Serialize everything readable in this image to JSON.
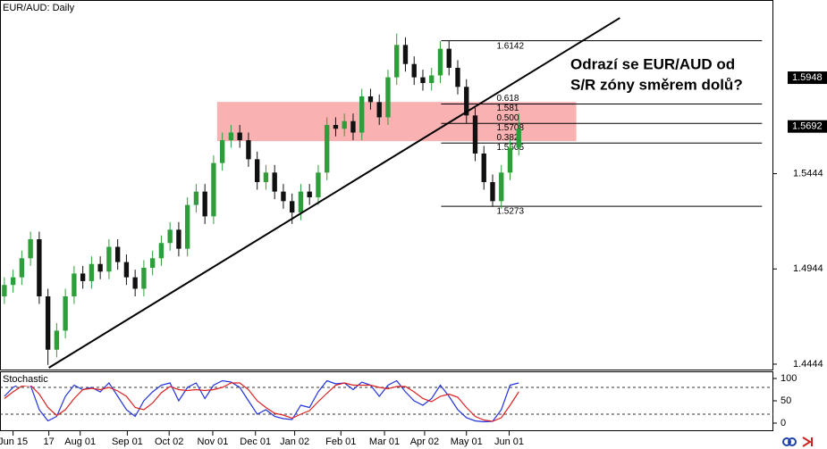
{
  "chart_data": {
    "type": "candlestick",
    "title": "EUR/AUD: Daily",
    "annotation": [
      "Odrazí se EUR/AUD od",
      "S/R zóny směrem dolů?"
    ],
    "up_color": "#2e9e3a",
    "down_color": "#111111",
    "open": [
      1.48,
      1.486,
      1.49,
      1.5,
      1.51,
      1.48,
      1.452,
      1.462,
      1.48,
      1.492,
      1.488,
      1.497,
      1.493,
      1.506,
      1.498,
      1.49,
      1.484,
      1.495,
      1.5,
      1.508,
      1.515,
      1.505,
      1.528,
      1.535,
      1.522,
      1.55,
      1.562,
      1.566,
      1.562,
      1.552,
      1.54,
      1.545,
      1.535,
      1.53,
      1.524,
      1.535,
      1.532,
      1.545,
      1.57,
      1.568,
      1.572,
      1.566,
      1.585,
      1.582,
      1.574,
      1.595,
      1.612,
      1.602,
      1.595,
      1.592,
      1.596,
      1.61,
      1.6,
      1.59,
      1.575,
      1.555,
      1.54,
      1.53,
      1.545,
      1.558
    ],
    "high": [
      1.49,
      1.494,
      1.504,
      1.514,
      1.514,
      1.484,
      1.466,
      1.484,
      1.496,
      1.496,
      1.501,
      1.501,
      1.51,
      1.51,
      1.502,
      1.494,
      1.499,
      1.504,
      1.512,
      1.519,
      1.519,
      1.532,
      1.539,
      1.539,
      1.554,
      1.566,
      1.57,
      1.57,
      1.566,
      1.556,
      1.549,
      1.549,
      1.539,
      1.534,
      1.539,
      1.539,
      1.549,
      1.574,
      1.574,
      1.576,
      1.576,
      1.589,
      1.589,
      1.586,
      1.599,
      1.618,
      1.616,
      1.606,
      1.599,
      1.6,
      1.614,
      1.614,
      1.604,
      1.594,
      1.579,
      1.559,
      1.544,
      1.549,
      1.562,
      1.576
    ],
    "low": [
      1.476,
      1.482,
      1.486,
      1.496,
      1.476,
      1.444,
      1.448,
      1.458,
      1.476,
      1.484,
      1.484,
      1.489,
      1.489,
      1.494,
      1.486,
      1.48,
      1.48,
      1.491,
      1.496,
      1.504,
      1.501,
      1.501,
      1.524,
      1.518,
      1.518,
      1.546,
      1.558,
      1.558,
      1.548,
      1.536,
      1.536,
      1.531,
      1.526,
      1.518,
      1.52,
      1.528,
      1.528,
      1.541,
      1.564,
      1.564,
      1.562,
      1.562,
      1.578,
      1.57,
      1.57,
      1.591,
      1.598,
      1.591,
      1.588,
      1.588,
      1.592,
      1.596,
      1.586,
      1.571,
      1.551,
      1.536,
      1.527,
      1.526,
      1.541,
      1.554
    ],
    "close": [
      1.486,
      1.49,
      1.5,
      1.51,
      1.48,
      1.452,
      1.462,
      1.48,
      1.492,
      1.488,
      1.497,
      1.493,
      1.506,
      1.498,
      1.49,
      1.484,
      1.495,
      1.5,
      1.508,
      1.515,
      1.505,
      1.528,
      1.535,
      1.522,
      1.55,
      1.562,
      1.566,
      1.562,
      1.552,
      1.54,
      1.545,
      1.535,
      1.53,
      1.524,
      1.535,
      1.532,
      1.545,
      1.57,
      1.568,
      1.572,
      1.566,
      1.585,
      1.582,
      1.574,
      1.595,
      1.612,
      1.602,
      1.595,
      1.592,
      1.596,
      1.61,
      1.6,
      1.59,
      1.575,
      1.555,
      1.54,
      1.53,
      1.545,
      1.558,
      1.568
    ],
    "xlim": [
      -0.5,
      88.2
    ],
    "ylim": [
      1.4411,
      1.6356
    ],
    "yticks": [
      1.4444,
      1.4944,
      1.5444
    ],
    "price_markers": [
      1.5948,
      1.5692
    ],
    "xticks": [
      {
        "value": 1.0,
        "label": "Jun 15"
      },
      {
        "value": 5.1,
        "label": "17"
      },
      {
        "value": 8.7,
        "label": "Aug 01"
      },
      {
        "value": 14.1,
        "label": "Sep 01"
      },
      {
        "value": 18.9,
        "label": "Oct 02"
      },
      {
        "value": 23.9,
        "label": "Nov 01"
      },
      {
        "value": 28.8,
        "label": "Dec 01"
      },
      {
        "value": 33.3,
        "label": "Jan 02"
      },
      {
        "value": 38.6,
        "label": "Feb 01"
      },
      {
        "value": 43.6,
        "label": "Mar 01"
      },
      {
        "value": 48.2,
        "label": "Apr 02"
      },
      {
        "value": 53.0,
        "label": "May 01"
      },
      {
        "value": 57.9,
        "label": "Jun 01"
      }
    ],
    "zone": {
      "x": [
        24.4,
        65.6
      ],
      "y": [
        1.5615,
        1.5821
      ],
      "color": "#f9a3a3"
    },
    "trendline": {
      "x": [
        5.1,
        70.6
      ],
      "y": [
        1.4425,
        1.6262
      ]
    },
    "fib": {
      "x": [
        50.1,
        86.9
      ],
      "high": 1.6142,
      "low": 1.5273,
      "levels": [
        {
          "ratio": 0.618,
          "price": 1.581
        },
        {
          "ratio": {
            "value": 0.5,
            "label": "0.500"
          },
          "price": 1.5708
        },
        {
          "ratio": 0.382,
          "price": 1.5605
        }
      ]
    },
    "indicator": {
      "name": "Stochastic",
      "ylim": [
        -12,
        114
      ],
      "yticks": [
        0,
        50,
        100
      ],
      "levels": [
        20,
        80
      ],
      "series": [
        {
          "color": "#2233dd",
          "values": [
            60,
            80,
            90,
            85,
            30,
            5,
            15,
            60,
            85,
            75,
            80,
            70,
            90,
            60,
            30,
            15,
            50,
            70,
            85,
            90,
            50,
            80,
            90,
            55,
            85,
            95,
            92,
            80,
            50,
            20,
            30,
            15,
            10,
            8,
            40,
            35,
            70,
            95,
            88,
            90,
            75,
            92,
            85,
            60,
            85,
            95,
            70,
            50,
            40,
            55,
            85,
            60,
            30,
            12,
            5,
            3,
            4,
            30,
            85,
            90
          ]
        },
        {
          "color": "#dd2222",
          "values": [
            55,
            70,
            83,
            85,
            65,
            35,
            17,
            30,
            55,
            75,
            78,
            75,
            80,
            72,
            60,
            35,
            30,
            45,
            68,
            82,
            75,
            73,
            75,
            73,
            75,
            80,
            90,
            90,
            75,
            50,
            35,
            22,
            18,
            11,
            20,
            28,
            48,
            67,
            85,
            90,
            85,
            85,
            85,
            80,
            77,
            82,
            82,
            70,
            55,
            48,
            60,
            65,
            58,
            35,
            15,
            7,
            4,
            12,
            40,
            70
          ]
        }
      ]
    }
  }
}
